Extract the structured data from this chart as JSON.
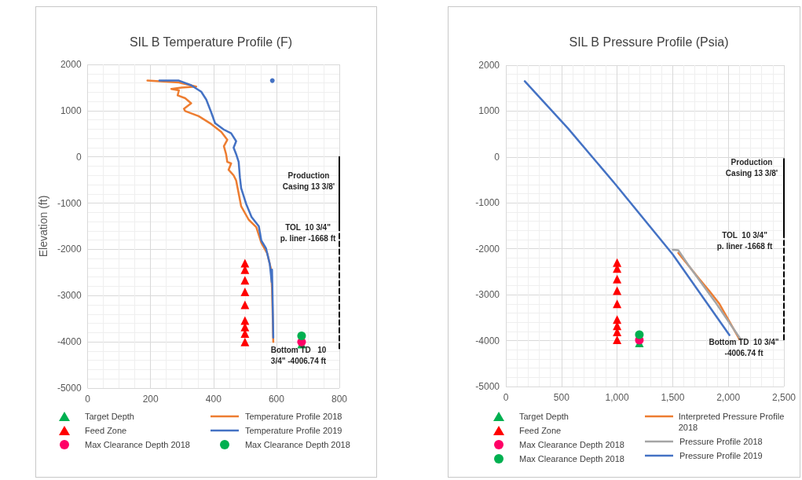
{
  "chart_data": [
    {
      "type": "line",
      "title": "SIL B Temperature Profile (F)",
      "ylabel": "Elevation (ft)",
      "xlim": [
        0,
        800
      ],
      "xticks": [
        0,
        200,
        400,
        600,
        800
      ],
      "ylim": [
        -5000,
        2000
      ],
      "yticks": [
        -5000,
        -4000,
        -3000,
        -2000,
        -1000,
        0,
        1000,
        2000
      ],
      "grid": true,
      "legend": "bottom",
      "series": [
        {
          "name": "Target Depth",
          "type": "scatter",
          "marker": "triangle",
          "color": "#00b050",
          "x": [
            680
          ],
          "values": [
            -4050
          ]
        },
        {
          "name": "Feed Zone",
          "type": "scatter",
          "marker": "triangle",
          "color": "#ff0000",
          "x": [
            500,
            500,
            500,
            500,
            500,
            500,
            500,
            500,
            500
          ],
          "values": [
            -2300,
            -2440,
            -2670,
            -2920,
            -3200,
            -3540,
            -3680,
            -3820,
            -4000
          ]
        },
        {
          "name": "Max Clearance Depth 2018",
          "type": "scatter",
          "marker": "circle",
          "color": "#ff0066",
          "x": [
            680
          ],
          "values": [
            -4000
          ]
        },
        {
          "name": "Temperature Profile 2018",
          "marker": "none",
          "color": "#ed7d31",
          "x": [
            190,
            290,
            345,
            298,
            266,
            290,
            286,
            310,
            329,
            306,
            310,
            353,
            393,
            425,
            444,
            433,
            440,
            444,
            456,
            448,
            464,
            472,
            480,
            488,
            512,
            536,
            552,
            571,
            583,
            586,
            588,
            590
          ],
          "values": [
            1650,
            1610,
            1520,
            1500,
            1470,
            1440,
            1330,
            1270,
            1160,
            1040,
            990,
            880,
            710,
            540,
            370,
            230,
            60,
            -110,
            -140,
            -280,
            -400,
            -510,
            -790,
            -1070,
            -1360,
            -1520,
            -1860,
            -2090,
            -2430,
            -2840,
            -3400,
            -4000
          ]
        },
        {
          "name": "Temperature Profile 2019",
          "marker": "none",
          "color": "#4472c4",
          "x": [
            228,
            290,
            329,
            361,
            377,
            393,
            405,
            433,
            456,
            472,
            464,
            472,
            480,
            484,
            488,
            504,
            521,
            544,
            552,
            567,
            579,
            585,
            586,
            588,
            590
          ],
          "values": [
            1650,
            1650,
            1550,
            1410,
            1240,
            960,
            730,
            590,
            510,
            340,
            200,
            60,
            -110,
            -450,
            -680,
            -1020,
            -1300,
            -1500,
            -1810,
            -1980,
            -2320,
            -2710,
            -2440,
            -3120,
            -3910
          ]
        },
        {
          "name": "Max Clearance Depth 2018",
          "type": "scatter",
          "marker": "circle",
          "color": "#00b050",
          "x": [
            680
          ],
          "values": [
            -3870
          ]
        },
        {
          "type": "scatter",
          "marker": "circle",
          "color": "#4472c4",
          "x": [
            587
          ],
          "values": [
            1650
          ]
        },
        {
          "marker": "none",
          "line_style": "solid",
          "color": "#000000",
          "x": [
            800,
            800
          ],
          "values": [
            0,
            -1590
          ]
        },
        {
          "marker": "none",
          "line_style": "dashed",
          "color": "#000000",
          "x": [
            800,
            800
          ],
          "values": [
            -1660,
            -4200
          ]
        }
      ],
      "annotations": [
        "Production\nCasing 13 3/8'",
        "TOL  10 3/4\"\np. liner -1668 ft",
        "Bottom TD   10\n3/4\" -4006.74 ft"
      ]
    },
    {
      "type": "line",
      "title": "SIL B Pressure Profile (Psia)",
      "xlim": [
        0,
        2500
      ],
      "xticks": [
        0,
        500,
        {
          "value": 1000,
          "label": "1,000"
        },
        {
          "value": 1500,
          "label": "1,500"
        },
        {
          "value": 2000,
          "label": "2,000"
        },
        {
          "value": 2500,
          "label": "2,500"
        }
      ],
      "ylim": [
        -5000,
        2000
      ],
      "yticks": [
        -5000,
        -4000,
        -3000,
        -2000,
        -1000,
        0,
        1000,
        2000
      ],
      "grid": true,
      "legend": "bottom",
      "series": [
        {
          "name": "Target Depth",
          "type": "scatter",
          "marker": "triangle",
          "color": "#00b050",
          "x": [
            1200
          ],
          "values": [
            -4050
          ]
        },
        {
          "name": "Feed Zone",
          "type": "scatter",
          "marker": "triangle",
          "color": "#ff0000",
          "x": [
            1000,
            1000,
            1000,
            1000,
            1000,
            1000,
            1000,
            1000,
            1000
          ],
          "values": [
            -2300,
            -2430,
            -2660,
            -2910,
            -3200,
            -3540,
            -3680,
            -3810,
            -3980
          ]
        },
        {
          "name": "Max Clearance Depth 2018",
          "type": "scatter",
          "marker": "circle",
          "color": "#ff0066",
          "x": [
            1200
          ],
          "values": [
            -3990
          ]
        },
        {
          "name": "Max Clearance Depth 2018",
          "type": "scatter",
          "marker": "circle",
          "color": "#00b050",
          "x": [
            1200
          ],
          "values": [
            -3870
          ]
        },
        {
          "name": "Interpreted Pressure Profile 2018",
          "marker": "none",
          "color": "#ed7d31",
          "x": [
            1550,
            1730,
            1830,
            1920,
            2100
          ],
          "values": [
            -2090,
            -2630,
            -2920,
            -3200,
            -3970
          ]
        },
        {
          "name": "Pressure Profile 2018",
          "marker": "none",
          "color": "#a5a5a5",
          "x": [
            1500,
            1550,
            1640,
            1880,
            1990,
            2110
          ],
          "values": [
            -2020,
            -2030,
            -2350,
            -3150,
            -3540,
            -3970
          ]
        },
        {
          "name": "Pressure Profile 2019",
          "marker": "none",
          "color": "#4472c4",
          "x": [
            170,
            560,
            980,
            1500,
            2010
          ],
          "values": [
            1650,
            620,
            -580,
            -2120,
            -3880
          ]
        },
        {
          "marker": "none",
          "line_style": "solid",
          "color": "#000000",
          "x": [
            2500,
            2500
          ],
          "values": [
            -40,
            -1690
          ]
        },
        {
          "marker": "none",
          "line_style": "dashed",
          "color": "#000000",
          "x": [
            2500,
            2500
          ],
          "values": [
            -1650,
            -4000
          ]
        }
      ],
      "annotations": [
        "Production\nCasing 13 3/8'",
        "TOL  10 3/4\"\np. liner -1668 ft",
        "Bottom TD  10 3/4\"\n-4006.74 ft"
      ]
    }
  ]
}
